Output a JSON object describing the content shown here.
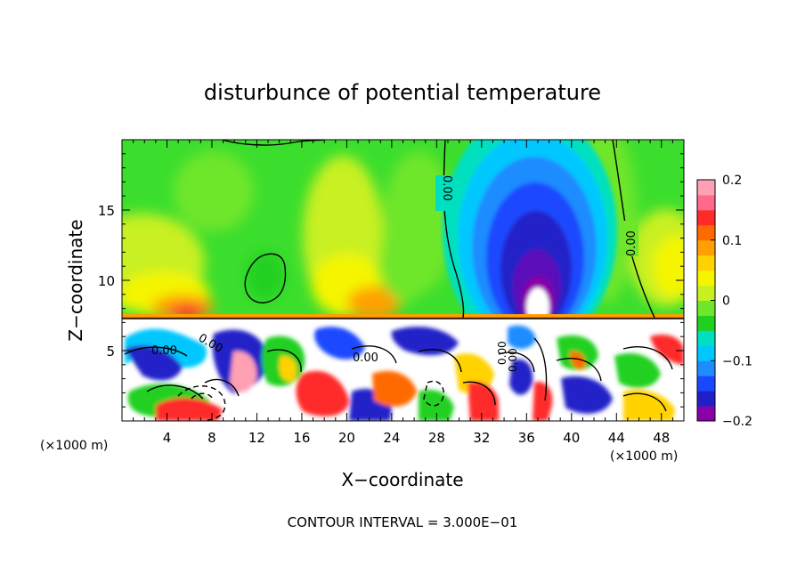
{
  "chart_data": {
    "type": "heatmap",
    "title": "disturbunce of potential temperature",
    "xlabel": "X−coordinate",
    "ylabel": "Z−coordinate",
    "x_unit_left": "(×1000 m)",
    "x_unit_right": "(×1000 m)",
    "xlim": [
      0,
      50
    ],
    "ylim": [
      0,
      20
    ],
    "x_ticks": [
      4,
      8,
      12,
      16,
      20,
      24,
      28,
      32,
      36,
      40,
      44,
      48
    ],
    "y_ticks": [
      5,
      10,
      15
    ],
    "colorbar": {
      "range": [
        -0.2,
        0.2
      ],
      "tick_values": [
        0.2,
        0.1,
        0,
        -0.1,
        -0.2
      ],
      "tick_labels": [
        "0.2",
        "0.1",
        "0",
        "−0.1",
        "−0.2"
      ],
      "colors": [
        "#8a00a8",
        "#2020c8",
        "#1a48ff",
        "#1e8cff",
        "#00c8ff",
        "#00e0c0",
        "#20d020",
        "#6ee62a",
        "#c8f020",
        "#f5f500",
        "#ffd200",
        "#ffa000",
        "#ff6a00",
        "#ff2a2a",
        "#ff6a8a",
        "#ffa0b4"
      ]
    },
    "contour_labels": [
      "0.00",
      "0.00",
      "0.00",
      "0.00",
      "0.00",
      "0.00",
      "0.00"
    ],
    "footer": "CONTOUR INTERVAL = 3.000E−01"
  }
}
